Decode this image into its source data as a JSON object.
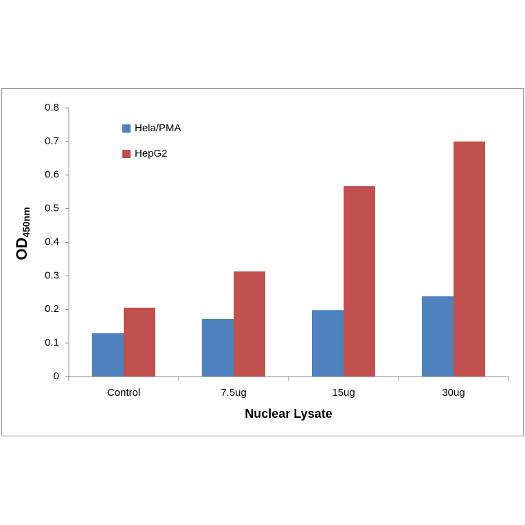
{
  "chart_data": {
    "type": "bar",
    "x_label": "Nuclear Lysate",
    "y_label": {
      "main": "OD",
      "sub": "450nm"
    },
    "categories": [
      "Control",
      "7.5ug",
      "15ug",
      "30ug"
    ],
    "series": [
      {
        "name": "Hela/PMA",
        "color": "#4f81bd",
        "values": [
          0.129,
          0.172,
          0.198,
          0.239
        ]
      },
      {
        "name": "HepG2",
        "color": "#c0504d",
        "values": [
          0.205,
          0.313,
          0.567,
          0.7
        ]
      }
    ],
    "ylim": [
      0,
      0.8
    ],
    "yticks": [
      0,
      0.1,
      0.2,
      0.3,
      0.4,
      0.5,
      0.6,
      0.7,
      0.8
    ],
    "grid": false,
    "legend": "top-left"
  }
}
